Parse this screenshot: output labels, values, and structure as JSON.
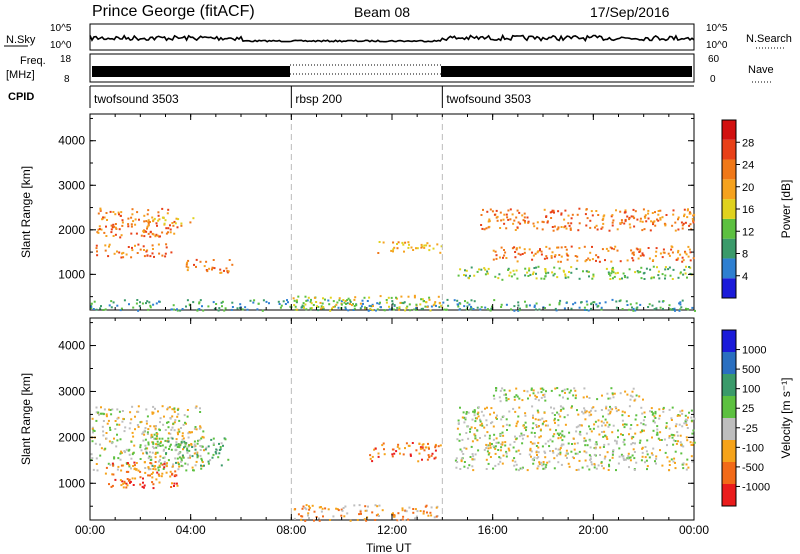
{
  "header": {
    "station": "Prince George (fitACF)",
    "beam": "Beam 08",
    "date": "17/Sep/2016"
  },
  "labels": {
    "nsky": "N.Sky",
    "nsearch": "N.Search",
    "freq_line1": "Freq.",
    "freq_line2": "[MHz]",
    "nave": "Nave",
    "cpid": "CPID",
    "n_left_top": "10^5",
    "n_left_bot": "10^0",
    "n_right_top": "10^5",
    "n_right_bot": "10^0",
    "freq_top": "18",
    "freq_bot": "8",
    "nave_top": "60",
    "nave_bot": "0"
  },
  "cpid_segments": [
    {
      "label": "twofsound 3503",
      "start_h": 0
    },
    {
      "label": "rbsp 200",
      "start_h": 8
    },
    {
      "label": "twofsound 3503",
      "start_h": 14
    }
  ],
  "colors": {
    "power": [
      "#1b1bd9",
      "#2e7fd1",
      "#3a9a6a",
      "#5cc040",
      "#e0d21e",
      "#f5a21e",
      "#f07818",
      "#e84018",
      "#d11010"
    ],
    "velocity": [
      "#ea1c1c",
      "#f26a18",
      "#f5a31a",
      "#bebebe",
      "#5cc040",
      "#3a9a6a",
      "#2a6fc0",
      "#1b1bd9"
    ]
  },
  "chart_data": [
    {
      "type": "heatmap",
      "name": "power-panel",
      "ylabel": "Slant Range [km]",
      "yticks": [
        "1000",
        "2000",
        "3000",
        "4000"
      ],
      "ylim": [
        200,
        4600
      ],
      "xlim": [
        0,
        24
      ],
      "xticks": [
        "00:00",
        "04:00",
        "08:00",
        "12:00",
        "16:00",
        "20:00",
        "00:00"
      ],
      "colorbar_label": "Power [dB]",
      "colorbar_ticks": [
        "4",
        "8",
        "12",
        "16",
        "20",
        "24",
        "28"
      ],
      "regions": [
        {
          "x": [
            0.2,
            3.5
          ],
          "y": [
            1850,
            2500
          ],
          "level": 6
        },
        {
          "x": [
            0.2,
            3.2
          ],
          "y": [
            1400,
            1700
          ],
          "level": 6
        },
        {
          "x": [
            2.0,
            4.2
          ],
          "y": [
            2100,
            2300
          ],
          "level": 5
        },
        {
          "x": [
            3.8,
            5.8
          ],
          "y": [
            1050,
            1350
          ],
          "level": 6
        },
        {
          "x": [
            0.0,
            24.0
          ],
          "y": [
            200,
            450
          ],
          "level": 2
        },
        {
          "x": [
            8.0,
            14.0
          ],
          "y": [
            200,
            550
          ],
          "level": 4
        },
        {
          "x": [
            11.2,
            14.0
          ],
          "y": [
            1500,
            1750
          ],
          "level": 5
        },
        {
          "x": [
            15.5,
            24.0
          ],
          "y": [
            2000,
            2500
          ],
          "level": 6
        },
        {
          "x": [
            16.0,
            24.0
          ],
          "y": [
            1300,
            1650
          ],
          "level": 6
        },
        {
          "x": [
            14.5,
            24.0
          ],
          "y": [
            900,
            1200
          ],
          "level": 3
        }
      ]
    },
    {
      "type": "heatmap",
      "name": "velocity-panel",
      "ylabel": "Slant Range [km]",
      "yticks": [
        "1000",
        "2000",
        "3000",
        "4000"
      ],
      "ylim": [
        200,
        4600
      ],
      "xlim": [
        0,
        24
      ],
      "xticks": [
        "00:00",
        "04:00",
        "08:00",
        "12:00",
        "16:00",
        "20:00",
        "00:00"
      ],
      "xlabel": "Time UT",
      "colorbar_label": "Velocity [m s⁻¹]",
      "colorbar_ticks": [
        "1000",
        "500",
        "100",
        "25",
        "-25",
        "-100",
        "-500",
        "-1000"
      ],
      "regions": [
        {
          "x": [
            0.0,
            4.5
          ],
          "y": [
            1300,
            2700
          ],
          "level": 3
        },
        {
          "x": [
            2.0,
            5.5
          ],
          "y": [
            1400,
            2000
          ],
          "level": 4
        },
        {
          "x": [
            0.5,
            3.5
          ],
          "y": [
            900,
            1500
          ],
          "level": 1
        },
        {
          "x": [
            8.0,
            14.0
          ],
          "y": [
            200,
            550
          ],
          "level": 2
        },
        {
          "x": [
            11.0,
            14.0
          ],
          "y": [
            1500,
            1900
          ],
          "level": 1
        },
        {
          "x": [
            14.5,
            24.0
          ],
          "y": [
            1300,
            2700
          ],
          "level": 3
        },
        {
          "x": [
            16.0,
            22.0
          ],
          "y": [
            2800,
            3100
          ],
          "level": 3
        }
      ]
    }
  ]
}
